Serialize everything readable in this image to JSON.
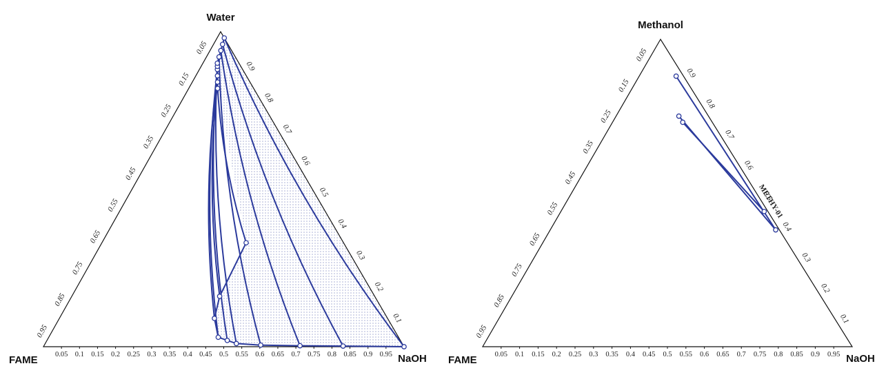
{
  "chart_data": [
    {
      "type": "ternary",
      "vertices": {
        "top": "Water",
        "left": "FAME",
        "right": "NaOH"
      },
      "ticks": {
        "bottom": [
          "0.05",
          "0.1",
          "0.15",
          "0.2",
          "0.25",
          "0.3",
          "0.35",
          "0.4",
          "0.45",
          "0.5",
          "0.55",
          "0.6",
          "0.65",
          "0.7",
          "0.75",
          "0.8",
          "0.85",
          "0.9",
          "0.95"
        ],
        "left": [
          "0.05",
          "0.15",
          "0.25",
          "0.35",
          "0.45",
          "0.55",
          "0.65",
          "0.75",
          "0.85",
          "0.95"
        ],
        "right": [
          "0.1",
          "0.2",
          "0.3",
          "0.4",
          "0.5",
          "0.6",
          "0.7",
          "0.8",
          "0.9"
        ]
      },
      "envelope": [
        [
          0.4,
          0.33
        ],
        [
          0.41,
          0.16
        ],
        [
          0.43,
          0.09
        ],
        [
          0.47,
          0.03
        ],
        [
          0.53,
          0.01
        ],
        [
          0.6,
          0.005
        ],
        [
          0.71,
          0.003
        ],
        [
          0.83,
          0.002
        ],
        [
          1.0,
          0.0
        ],
        [
          0.02,
          0.98
        ],
        [
          0.025,
          0.96
        ],
        [
          0.03,
          0.94
        ],
        [
          0.035,
          0.92
        ],
        [
          0.04,
          0.9
        ],
        [
          0.05,
          0.88
        ],
        [
          0.06,
          0.86
        ],
        [
          0.07,
          0.84
        ],
        [
          0.08,
          0.82
        ]
      ],
      "tie_lines": [
        [
          [
            0.08,
            0.82
          ],
          [
            0.4,
            0.33
          ]
        ],
        [
          [
            0.07,
            0.84
          ],
          [
            0.41,
            0.16
          ]
        ],
        [
          [
            0.06,
            0.86
          ],
          [
            0.43,
            0.09
          ]
        ],
        [
          [
            0.05,
            0.88
          ],
          [
            0.47,
            0.03
          ]
        ],
        [
          [
            0.045,
            0.89
          ],
          [
            0.5,
            0.02
          ]
        ],
        [
          [
            0.04,
            0.9
          ],
          [
            0.53,
            0.01
          ]
        ],
        [
          [
            0.035,
            0.92
          ],
          [
            0.6,
            0.005
          ]
        ],
        [
          [
            0.03,
            0.94
          ],
          [
            0.71,
            0.003
          ]
        ],
        [
          [
            0.025,
            0.96
          ],
          [
            0.83,
            0.002
          ]
        ],
        [
          [
            0.02,
            0.98
          ],
          [
            1.0,
            0.0
          ]
        ]
      ],
      "annotation": ""
    },
    {
      "type": "ternary",
      "vertices": {
        "top": "Methanol",
        "left": "FAME",
        "right": "NaOH"
      },
      "ticks": {
        "bottom": [
          "0.05",
          "0.1",
          "0.15",
          "0.2",
          "0.25",
          "0.3",
          "0.35",
          "0.4",
          "0.45",
          "0.5",
          "0.55",
          "0.6",
          "0.65",
          "0.7",
          "0.75",
          "0.8",
          "0.85",
          "0.9",
          "0.95"
        ],
        "left": [
          "0.05",
          "0.15",
          "0.25",
          "0.35",
          "0.45",
          "0.55",
          "0.65",
          "0.75",
          "0.85",
          "0.95"
        ],
        "right": [
          "0.1",
          "0.2",
          "0.3",
          "0.4",
          "0.5",
          "0.6",
          "0.7",
          "0.8",
          "0.9"
        ]
      },
      "envelope": [
        [
          0.1,
          0.88
        ],
        [
          0.17,
          0.75
        ],
        [
          0.19,
          0.73
        ],
        [
          0.61,
          0.38
        ]
      ],
      "tie_lines": [
        [
          [
            0.1,
            0.88
          ],
          [
            0.61,
            0.38
          ]
        ],
        [
          [
            0.17,
            0.75
          ],
          [
            0.61,
            0.38
          ]
        ],
        [
          [
            0.19,
            0.73
          ],
          [
            0.55,
            0.44
          ]
        ]
      ],
      "annotation": "METHY-01"
    }
  ],
  "colors": {
    "line": "#2b3a9c",
    "frame": "#111111",
    "fill_dot": "#6f7ab8"
  }
}
